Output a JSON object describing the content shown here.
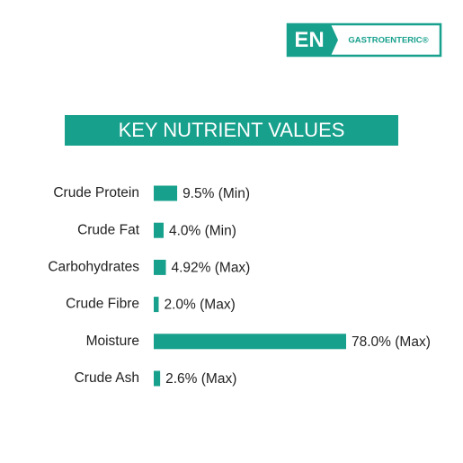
{
  "logo": {
    "mark": "EN",
    "text": "GASTROENTERIC®"
  },
  "chart_data": {
    "type": "bar",
    "orientation": "horizontal",
    "title": "KEY NUTRIENT VALUES",
    "categories": [
      "Crude Protein",
      "Crude Fat",
      "Carbohydrates",
      "Crude Fibre",
      "Moisture",
      "Crude Ash"
    ],
    "values": [
      9.5,
      4.0,
      4.92,
      2.0,
      78.0,
      2.6
    ],
    "value_labels": [
      "9.5% (Min)",
      "4.0% (Min)",
      "4.92% (Max)",
      "2.0% (Max)",
      "78.0% (Max)",
      "2.6% (Max)"
    ],
    "color": "#17a08c"
  }
}
